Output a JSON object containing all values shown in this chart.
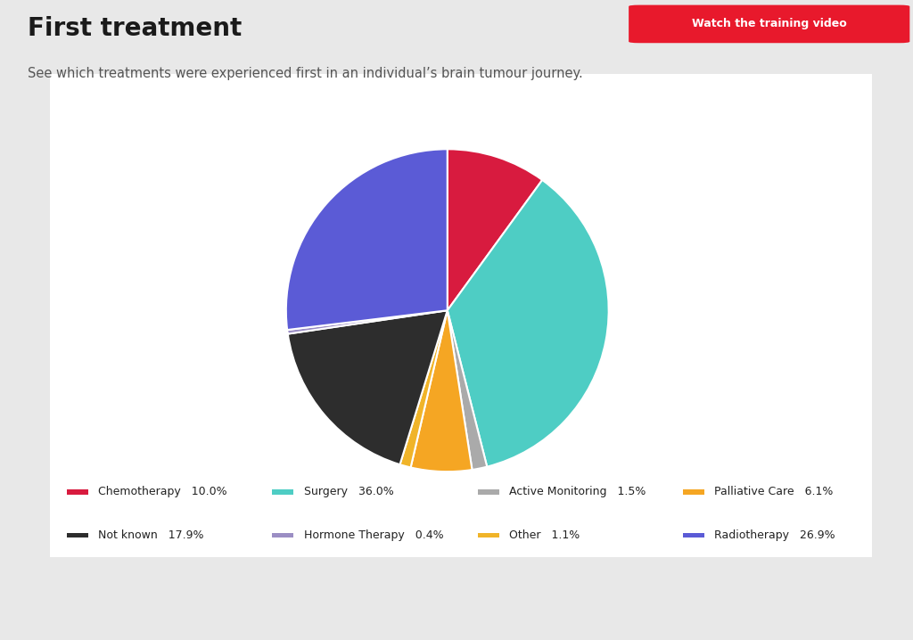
{
  "title": "First treatment",
  "subtitle": "See which treatments were experienced first in an individual’s brain tumour journey.",
  "button_text": "Watch the training video",
  "button_color": "#e8192c",
  "title_color": "#1a1a1a",
  "subtitle_color": "#555555",
  "divider_color": "#e8a020",
  "background_color": "#e8e8e8",
  "chart_background": "#ffffff",
  "slices": [
    {
      "label": "Chemotherapy",
      "value": 10.0,
      "color": "#d81b3f"
    },
    {
      "label": "Surgery",
      "value": 36.0,
      "color": "#4ecdc4"
    },
    {
      "label": "Active Monitoring",
      "value": 1.5,
      "color": "#aaaaaa"
    },
    {
      "label": "Palliative Care",
      "value": 6.1,
      "color": "#f5a623"
    },
    {
      "label": "Other",
      "value": 1.1,
      "color": "#f0b429"
    },
    {
      "label": "Not known",
      "value": 17.9,
      "color": "#2d2d2d"
    },
    {
      "label": "Hormone Therapy",
      "value": 0.4,
      "color": "#9b8ec4"
    },
    {
      "label": "Radiotherapy",
      "value": 26.9,
      "color": "#5b5bd6"
    }
  ],
  "legend_order": [
    {
      "label": "Chemotherapy",
      "value": "10.0%",
      "color": "#d81b3f"
    },
    {
      "label": "Surgery",
      "value": "36.0%",
      "color": "#4ecdc4"
    },
    {
      "label": "Active Monitoring",
      "value": "1.5%",
      "color": "#aaaaaa"
    },
    {
      "label": "Palliative Care",
      "value": "6.1%",
      "color": "#f5a623"
    },
    {
      "label": "Not known",
      "value": "17.9%",
      "color": "#2d2d2d"
    },
    {
      "label": "Hormone Therapy",
      "value": "0.4%",
      "color": "#9b8ec4"
    },
    {
      "label": "Other",
      "value": "1.1%",
      "color": "#f0b429"
    },
    {
      "label": "Radiotherapy",
      "value": "26.9%",
      "color": "#5b5bd6"
    }
  ]
}
